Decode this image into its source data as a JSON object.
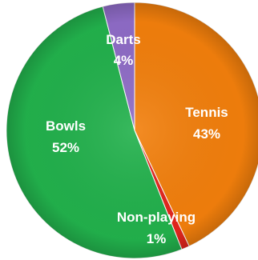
{
  "chart_data": {
    "type": "pie",
    "slices": [
      {
        "label": "Tennis",
        "value": 43,
        "display": "43%",
        "color": "#F27F0C"
      },
      {
        "label": "Non-playing",
        "value": 1,
        "display": "1%",
        "color": "#E3261D"
      },
      {
        "label": "Bowls",
        "value": 52,
        "display": "52%",
        "color": "#22B14C"
      },
      {
        "label": "Darts",
        "value": 4,
        "display": "4%",
        "color": "#8E6BC6"
      }
    ]
  }
}
